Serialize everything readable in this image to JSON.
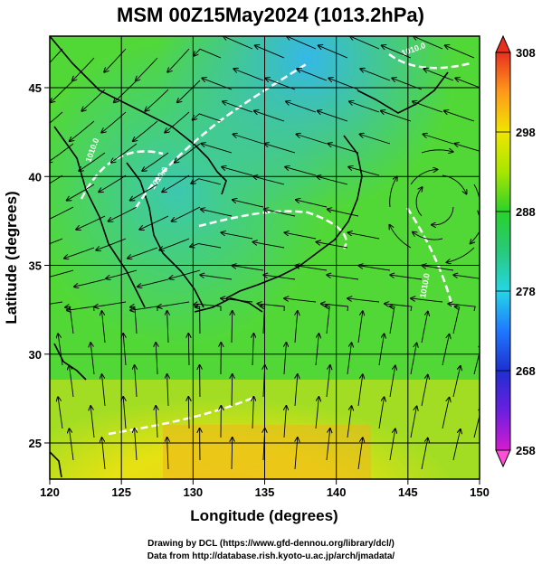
{
  "title": "MSM 00Z15May2024 (1013.2hPa)",
  "x_axis": {
    "label": "Longitude (degrees)",
    "ticks": [
      "120",
      "125",
      "130",
      "135",
      "140",
      "145",
      "150"
    ]
  },
  "y_axis": {
    "label": "Latitude  (degrees)",
    "ticks": [
      "25",
      "30",
      "35",
      "40",
      "45"
    ]
  },
  "colorbar": {
    "ticks": [
      "308",
      "298",
      "288",
      "278",
      "268",
      "258"
    ]
  },
  "isobar_labels": [
    "1010.0",
    "1010.0",
    "1010.0",
    "1010.0"
  ],
  "credits": {
    "line1": "Drawing by DCL (https://www.gfd-dennou.org/library/dcl/)",
    "line2": "Data from http://database.rish.kyoto-u.ac.jp/arch/jmadata/"
  },
  "colors": {
    "c258": "#d61bd0",
    "c263": "#6a1fe0",
    "c268": "#1e2fd0",
    "c273": "#1f78ff",
    "c278": "#25d6e6",
    "c283": "#28c97a",
    "c288": "#2bd12b",
    "c293": "#a8e600",
    "c298": "#f0e600",
    "c303": "#ff9a1a",
    "c308": "#e8301f"
  }
}
